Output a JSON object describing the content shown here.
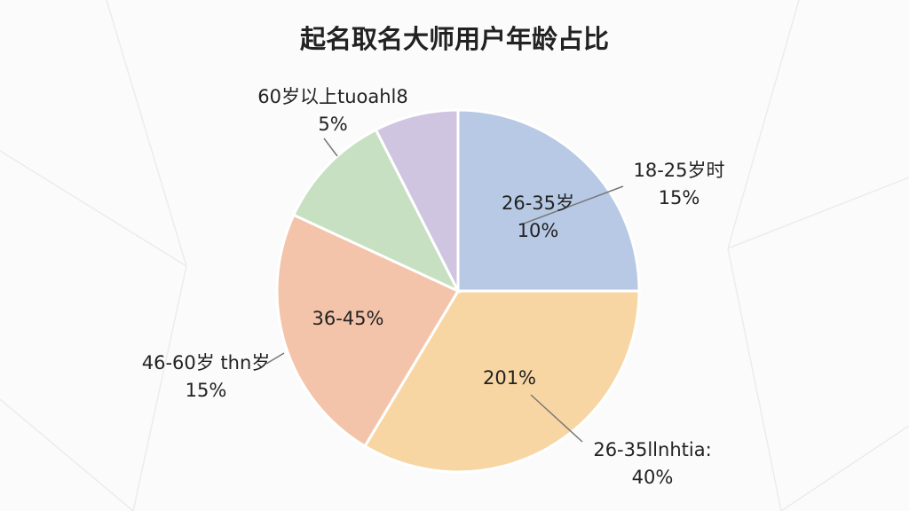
{
  "chart_data": {
    "type": "pie",
    "title": "起名取名大师用户年龄占比",
    "values": [
      25,
      33.6,
      23.3,
      10.6,
      7.5
    ],
    "colors": [
      "#b7c9e4",
      "#f8d6a4",
      "#f3c4aa",
      "#c7e0c1",
      "#d0c5e0"
    ],
    "annotations": [
      [
        "60岁以上tuoahl8",
        "5%"
      ],
      [
        "18-25岁时",
        "15%"
      ],
      [
        "26-35岁",
        "10%"
      ],
      [
        "36-45%"
      ],
      [
        "201%"
      ],
      [
        "46-60岁 thn岁",
        "15%"
      ],
      [
        "26-35llnhtia:",
        "40%"
      ]
    ]
  }
}
